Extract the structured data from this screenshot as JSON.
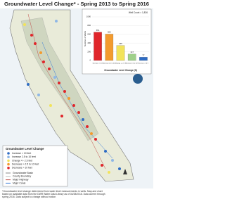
{
  "title": "Groundwater Level Change* - Spring 2013 to Spring 2016",
  "chart_data": {
    "type": "bar",
    "annotation": "Well Count = 1,826",
    "x_label": "Groundwater Level Change (ft)",
    "y_label": "Number of Wells",
    "categories": [
      "Decrease > 10 ft",
      "Decrease 2.5 to 10 ft",
      "Change +/- 2.5 ft",
      "Increase 2.5 to 10 ft",
      "Increase > 10 ft"
    ],
    "values": [
      651,
      606,
      345,
      147,
      77
    ],
    "colors": [
      "#e0262b",
      "#f39b2f",
      "#f2e35a",
      "#9fd08a",
      "#2f6cc4"
    ],
    "ylim": [
      0,
      1000
    ],
    "yticks": [
      0,
      200,
      400,
      600,
      800,
      1000
    ],
    "grid": true
  },
  "legend": {
    "title": "Groundwater Level Change",
    "items": [
      {
        "label": "Increase > 10 feet",
        "color": "#2f6cc4"
      },
      {
        "label": "Increase 2.5 to 10 feet",
        "color": "#8fb7e6"
      },
      {
        "label": "Change +/- 2.5 feet",
        "color": "#f2e35a"
      },
      {
        "label": "Decrease > 2.5 to 10 feet",
        "color": "#f39b2f"
      },
      {
        "label": "Decrease > 10 feet",
        "color": "#e0262b"
      }
    ],
    "lines": [
      {
        "label": "Groundwater Basin",
        "color": "#8a8a8a"
      },
      {
        "label": "County Boundary",
        "color": "#bbbbbb"
      },
      {
        "label": "Major Highway",
        "color": "#c0504d"
      },
      {
        "label": "Major Canal",
        "color": "#3b7dd8"
      }
    ]
  },
  "footnote": "*Groundwater level change determined from water level measurements in wells. Map and chart based on available data from the DWR Water Data Library as of 04/28/2016. Data current through spring 2016. Data subject to change without notice."
}
